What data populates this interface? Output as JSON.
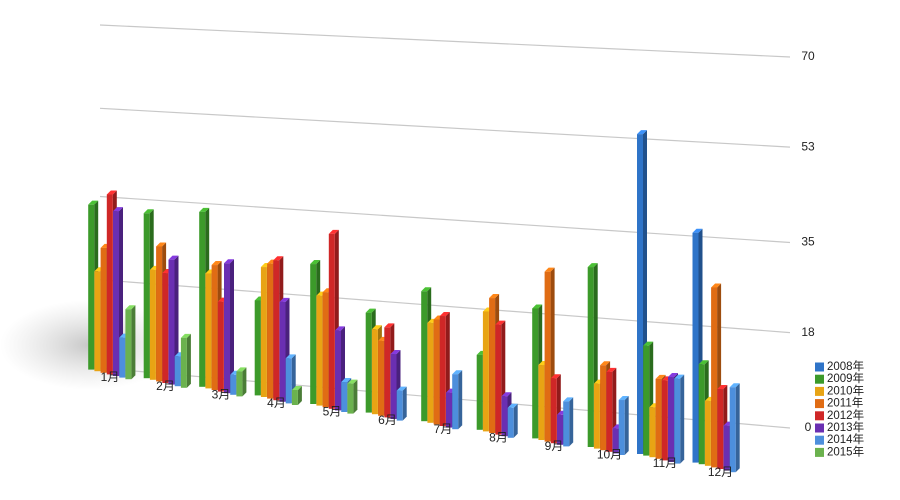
{
  "chart_data": {
    "type": "bar",
    "categories": [
      "1月",
      "2月",
      "3月",
      "4月",
      "5月",
      "6月",
      "7月",
      "8月",
      "9月",
      "10月",
      "11月",
      "12月"
    ],
    "series": [
      {
        "name": "2008年",
        "color": "#2f74c8",
        "values": [
          null,
          null,
          null,
          null,
          null,
          null,
          null,
          null,
          null,
          null,
          64,
          46
        ]
      },
      {
        "name": "2009年",
        "color": "#3c9a2a",
        "values": [
          33,
          33,
          35,
          19,
          28,
          20,
          26,
          15,
          26,
          36,
          22,
          20
        ]
      },
      {
        "name": "2010年",
        "color": "#e8a414",
        "values": [
          20,
          22,
          23,
          26,
          22,
          17,
          20,
          24,
          15,
          13,
          10,
          13
        ]
      },
      {
        "name": "2011年",
        "color": "#e06c14",
        "values": [
          25,
          27,
          25,
          27,
          23,
          15,
          21,
          27,
          34,
          17,
          16,
          36
        ]
      },
      {
        "name": "2012年",
        "color": "#cf2727",
        "values": [
          36,
          22,
          18,
          28,
          35,
          18,
          22,
          22,
          13,
          16,
          16,
          16
        ]
      },
      {
        "name": "2013年",
        "color": "#6a2fb2",
        "values": [
          33,
          25,
          26,
          20,
          16,
          13,
          7,
          8,
          6,
          5,
          17,
          9
        ]
      },
      {
        "name": "2014年",
        "color": "#4d8fdc",
        "values": [
          8,
          6,
          4,
          9,
          6,
          6,
          11,
          6,
          9,
          11,
          17,
          17
        ]
      },
      {
        "name": "2015年",
        "color": "#6bb24e",
        "values": [
          14,
          10,
          5,
          3,
          6,
          null,
          null,
          null,
          null,
          null,
          null,
          null
        ]
      }
    ],
    "ylim": [
      0,
      70
    ],
    "yticks": [
      0,
      18,
      35,
      53,
      70
    ],
    "grid": true,
    "legend": "bottom-right"
  }
}
